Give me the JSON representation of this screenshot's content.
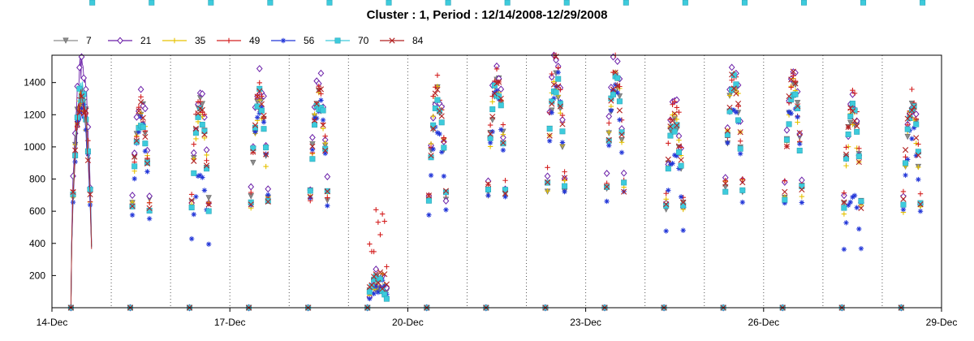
{
  "chart_data": {
    "type": "line",
    "title": "Cluster : 1, Period : 12/14/2008-12/29/2008",
    "xlabel": "",
    "ylabel": "",
    "xlim": [
      "2008-12-14",
      "2008-12-29"
    ],
    "ylim": [
      0,
      1570
    ],
    "x_ticks": [
      "14-Dec",
      "17-Dec",
      "20-Dec",
      "23-Dec",
      "26-Dec",
      "29-Dec"
    ],
    "y_ticks": [
      200,
      400,
      600,
      800,
      1000,
      1200,
      1400
    ],
    "grid": {
      "vertical_dotted_daily": true,
      "horizontal": false
    },
    "legend_placement": "top-left",
    "series": [
      {
        "name": "7",
        "color": "#8c8c8c",
        "marker": "triangle-down",
        "peaks": [
          1330,
          1230,
          1240,
          1280,
          1330,
          160,
          1320,
          1390,
          1420,
          1400,
          1180,
          1400,
          1370,
          1220,
          1240
        ]
      },
      {
        "name": "21",
        "color": "#6a1ea8",
        "marker": "diamond",
        "peaks": [
          1490,
          1320,
          1290,
          1420,
          1470,
          180,
          1340,
          1470,
          1560,
          1540,
          1260,
          1480,
          1470,
          1270,
          1280
        ]
      },
      {
        "name": "35",
        "color": "#e6c200",
        "marker": "plus",
        "peaks": [
          1300,
          1200,
          1200,
          1250,
          1300,
          170,
          1330,
          1390,
          1440,
          1450,
          1220,
          1440,
          1350,
          1180,
          1200
        ]
      },
      {
        "name": "49",
        "color": "#d42020",
        "marker": "plus",
        "peaks": [
          1320,
          1250,
          1300,
          1320,
          1350,
          560,
          1400,
          1460,
          1580,
          1500,
          1330,
          1460,
          1420,
          1320,
          1320
        ]
      },
      {
        "name": "56",
        "color": "#2236d8",
        "marker": "star",
        "peaks": [
          1240,
          1120,
          800,
          1280,
          1260,
          140,
          1100,
          1300,
          1420,
          1320,
          960,
          1300,
          1320,
          680,
          1100
        ]
      },
      {
        "name": "70",
        "color": "#3dcbdc",
        "marker": "square",
        "peaks": [
          1340,
          1150,
          1180,
          1300,
          1310,
          160,
          1300,
          1380,
          1420,
          1400,
          1150,
          1380,
          1360,
          1200,
          1230
        ]
      },
      {
        "name": "84",
        "color": "#b22222",
        "marker": "x",
        "peaks": [
          1300,
          1220,
          1250,
          1300,
          1320,
          200,
          1320,
          1400,
          1480,
          1420,
          1200,
          1420,
          1400,
          1220,
          1250
        ]
      }
    ]
  }
}
